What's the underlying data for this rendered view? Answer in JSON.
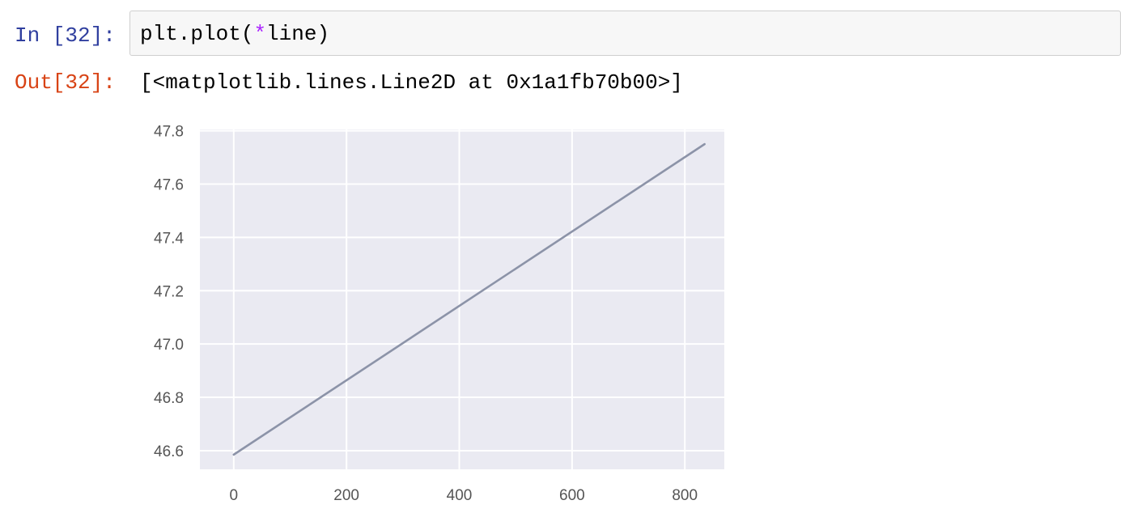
{
  "cell": {
    "in_prompt": "In [32]:",
    "out_prompt": "Out[32]:",
    "code": {
      "prefix": "plt.plot(",
      "operator": "*",
      "suffix": "line)"
    },
    "output_text": "[<matplotlib.lines.Line2D at 0x1a1fb70b00>]"
  },
  "colors": {
    "in_prompt": "#303f9f",
    "out_prompt": "#d84315",
    "plot_background": "#eaeaf2",
    "grid": "#ffffff",
    "line": "#8c93a8"
  },
  "chart_data": {
    "type": "line",
    "title": "",
    "xlabel": "",
    "ylabel": "",
    "x": [
      0,
      835
    ],
    "y": [
      46.585,
      47.75
    ],
    "xlim": [
      -60,
      870
    ],
    "ylim": [
      46.53,
      47.805
    ],
    "xticks": [
      0,
      200,
      400,
      600,
      800
    ],
    "yticks": [
      46.6,
      46.8,
      47.0,
      47.2,
      47.4,
      47.6,
      47.8
    ],
    "xtick_labels": [
      "0",
      "200",
      "400",
      "600",
      "800"
    ],
    "ytick_labels": [
      "46.6",
      "46.8",
      "47.0",
      "47.2",
      "47.4",
      "47.6",
      "47.8"
    ],
    "grid": true,
    "legend": "none"
  }
}
